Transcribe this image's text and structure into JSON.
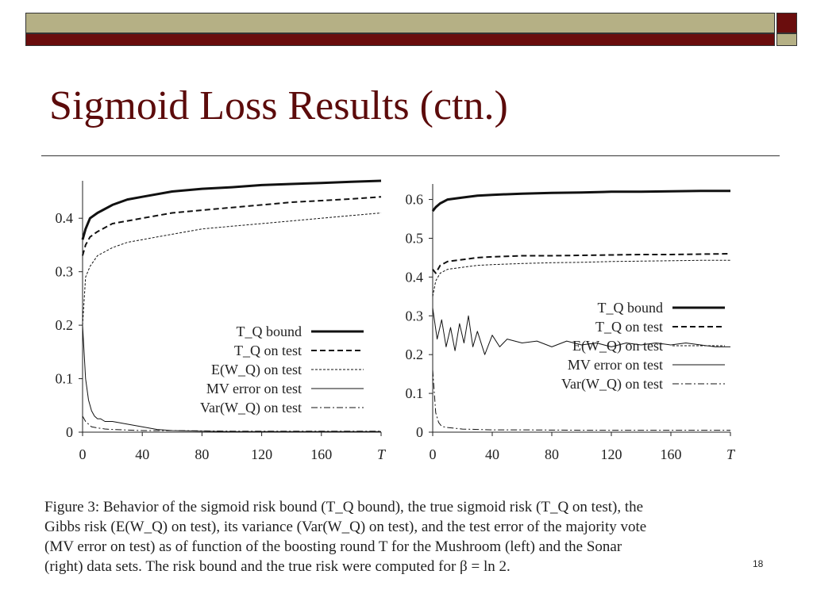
{
  "slide": {
    "title": "Sigmoid Loss Results (ctn.)",
    "page_number": "18",
    "colors": {
      "title": "#5c0b0b",
      "band_olive": "#b5b085",
      "band_maroon": "#6a0d0d"
    }
  },
  "caption": {
    "lines": [
      "Figure 3: Behavior of the sigmoid risk bound (T_Q bound), the true sigmoid risk (T_Q on test), the",
      "Gibbs risk (E(W_Q) on test), its variance (Var(W_Q) on test), and the test error of the majority vote",
      "(MV error on test) as of function of the boosting round T for the Mushroom (left) and the Sonar",
      "(right) data sets. The risk bound and the true risk were computed for β = ln 2."
    ]
  },
  "chart_data": [
    {
      "type": "line",
      "xticks": [
        "0",
        "40",
        "80",
        "120",
        "160",
        "T"
      ],
      "yticks": [
        "0",
        "0.1",
        "0.2",
        "0.3",
        "0.4"
      ],
      "xlim": [
        0,
        200
      ],
      "ylim": [
        0,
        0.47
      ],
      "legend_placement": "center-right",
      "series": [
        {
          "name": "T_Q bound",
          "style": "thick-solid",
          "x": [
            0,
            2,
            5,
            10,
            20,
            30,
            40,
            60,
            80,
            100,
            120,
            140,
            160,
            180,
            200
          ],
          "y": [
            0.36,
            0.38,
            0.4,
            0.41,
            0.425,
            0.435,
            0.44,
            0.45,
            0.455,
            0.458,
            0.462,
            0.464,
            0.466,
            0.468,
            0.47
          ]
        },
        {
          "name": "T_Q on test",
          "style": "dashed",
          "x": [
            0,
            2,
            5,
            10,
            20,
            30,
            40,
            60,
            80,
            100,
            120,
            140,
            160,
            180,
            200
          ],
          "y": [
            0.33,
            0.35,
            0.365,
            0.375,
            0.39,
            0.395,
            0.4,
            0.41,
            0.415,
            0.42,
            0.425,
            0.43,
            0.433,
            0.436,
            0.44
          ]
        },
        {
          "name": "E(W_Q) on test",
          "style": "dotted",
          "x": [
            0,
            2,
            5,
            10,
            20,
            30,
            40,
            60,
            80,
            100,
            120,
            140,
            160,
            180,
            200
          ],
          "y": [
            0.2,
            0.29,
            0.31,
            0.33,
            0.345,
            0.355,
            0.36,
            0.37,
            0.38,
            0.385,
            0.39,
            0.395,
            0.4,
            0.405,
            0.41
          ]
        },
        {
          "name": "MV error on test",
          "style": "thin-solid",
          "x": [
            0,
            2,
            4,
            6,
            8,
            10,
            12,
            15,
            20,
            30,
            40,
            50,
            60,
            80,
            100,
            140,
            200
          ],
          "y": [
            0.2,
            0.1,
            0.06,
            0.04,
            0.03,
            0.025,
            0.025,
            0.02,
            0.02,
            0.015,
            0.01,
            0.005,
            0.003,
            0.002,
            0.001,
            0.001,
            0.001
          ]
        },
        {
          "name": "Var(W_Q) on test",
          "style": "dash-dot",
          "x": [
            0,
            2,
            4,
            6,
            10,
            15,
            20,
            30,
            40,
            60,
            100,
            200
          ],
          "y": [
            0.03,
            0.02,
            0.015,
            0.01,
            0.008,
            0.006,
            0.005,
            0.004,
            0.003,
            0.003,
            0.002,
            0.002
          ]
        }
      ]
    },
    {
      "type": "line",
      "xticks": [
        "0",
        "40",
        "80",
        "120",
        "160",
        "T"
      ],
      "yticks": [
        "0",
        "0.1",
        "0.2",
        "0.3",
        "0.4",
        "0.5",
        "0.6"
      ],
      "xlim": [
        0,
        200
      ],
      "ylim": [
        0,
        0.64
      ],
      "legend_placement": "center-right",
      "series": [
        {
          "name": "T_Q bound",
          "style": "thick-solid",
          "x": [
            0,
            2,
            5,
            10,
            20,
            30,
            40,
            60,
            80,
            100,
            120,
            140,
            160,
            180,
            200
          ],
          "y": [
            0.57,
            0.58,
            0.59,
            0.6,
            0.605,
            0.61,
            0.612,
            0.615,
            0.617,
            0.618,
            0.62,
            0.62,
            0.621,
            0.622,
            0.622
          ]
        },
        {
          "name": "T_Q on test",
          "style": "dashed",
          "x": [
            0,
            2,
            5,
            10,
            20,
            30,
            40,
            60,
            80,
            100,
            120,
            140,
            160,
            180,
            200
          ],
          "y": [
            0.42,
            0.41,
            0.43,
            0.44,
            0.445,
            0.45,
            0.452,
            0.455,
            0.455,
            0.456,
            0.457,
            0.458,
            0.458,
            0.459,
            0.46
          ]
        },
        {
          "name": "E(W_Q) on test",
          "style": "dotted",
          "x": [
            0,
            2,
            5,
            10,
            20,
            30,
            40,
            60,
            80,
            100,
            120,
            140,
            160,
            180,
            200
          ],
          "y": [
            0.35,
            0.39,
            0.41,
            0.42,
            0.425,
            0.43,
            0.432,
            0.435,
            0.437,
            0.438,
            0.44,
            0.441,
            0.442,
            0.443,
            0.443
          ]
        },
        {
          "name": "MV error on test",
          "style": "thin-solid",
          "x": [
            0,
            3,
            6,
            9,
            12,
            15,
            18,
            21,
            24,
            27,
            30,
            35,
            40,
            45,
            50,
            60,
            70,
            80,
            90,
            100,
            110,
            120,
            130,
            140,
            150,
            160,
            170,
            180,
            190,
            200
          ],
          "y": [
            0.32,
            0.24,
            0.29,
            0.22,
            0.27,
            0.21,
            0.28,
            0.23,
            0.3,
            0.22,
            0.26,
            0.2,
            0.25,
            0.22,
            0.24,
            0.23,
            0.235,
            0.22,
            0.235,
            0.225,
            0.23,
            0.22,
            0.23,
            0.225,
            0.23,
            0.225,
            0.23,
            0.225,
            0.22,
            0.22
          ]
        },
        {
          "name": "Var(W_Q) on test",
          "style": "dash-dot",
          "x": [
            0,
            2,
            4,
            6,
            10,
            15,
            20,
            30,
            40,
            60,
            100,
            200
          ],
          "y": [
            0.16,
            0.05,
            0.025,
            0.015,
            0.012,
            0.01,
            0.008,
            0.007,
            0.006,
            0.006,
            0.005,
            0.005
          ]
        }
      ]
    }
  ]
}
